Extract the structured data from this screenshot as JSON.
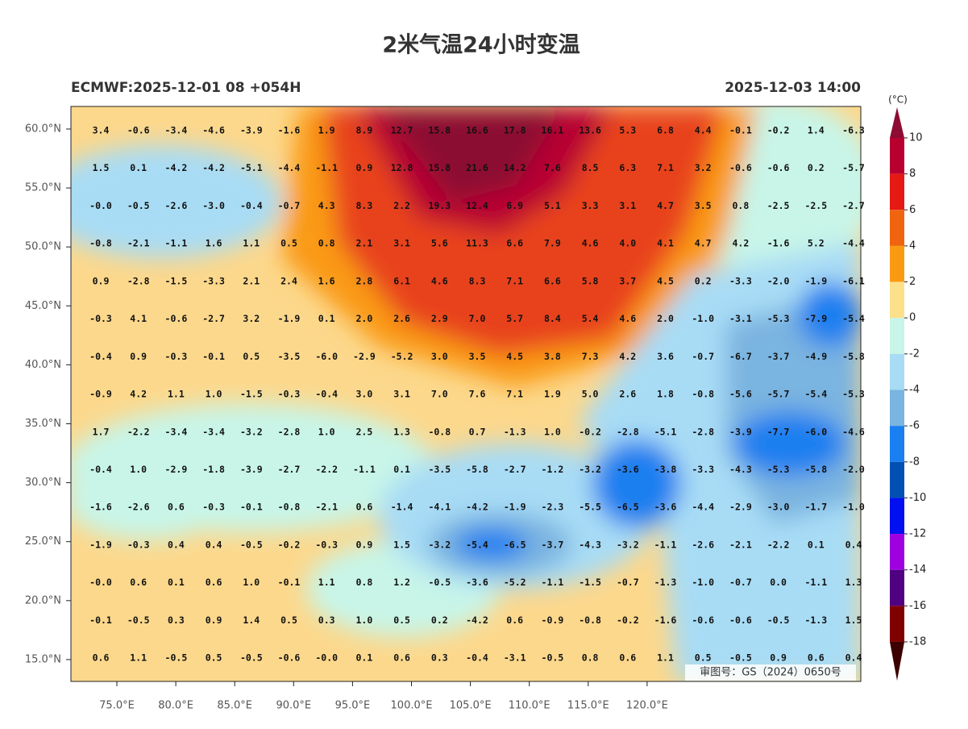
{
  "header": {
    "title": "2米气温24小时变温",
    "left": "ECMWF:2025-12-01 08 +054H",
    "right": "2025-12-03 14:00"
  },
  "map": {
    "lat_ticks": [
      {
        "value": 60,
        "label": "60.0°N"
      },
      {
        "value": 55,
        "label": "55.0°N"
      },
      {
        "value": 50,
        "label": "50.0°N"
      },
      {
        "value": 45,
        "label": "45.0°N"
      },
      {
        "value": 40,
        "label": "40.0°N"
      },
      {
        "value": 35,
        "label": "35.0°N"
      },
      {
        "value": 30,
        "label": "30.0°N"
      },
      {
        "value": 25,
        "label": "25.0°N"
      },
      {
        "value": 20,
        "label": "20.0°N"
      },
      {
        "value": 15,
        "label": "15.0°N"
      }
    ],
    "lon_ticks": [
      {
        "value": 75,
        "label": "75.0°E"
      },
      {
        "value": 80,
        "label": "80.0°E"
      },
      {
        "value": 85,
        "label": "85.0°E"
      },
      {
        "value": 90,
        "label": "90.0°E"
      },
      {
        "value": 95,
        "label": "95.0°E"
      },
      {
        "value": 100,
        "label": "100.0°E"
      },
      {
        "value": 105,
        "label": "105.0°E"
      },
      {
        "value": 110,
        "label": "110.0°E"
      },
      {
        "value": 115,
        "label": "115.0°E"
      },
      {
        "value": 120,
        "label": "120.0°E"
      }
    ],
    "grid": [
      [
        "3.4",
        "-0.6",
        "-3.4",
        "-4.6",
        "-3.9",
        "-1.6",
        "1.9",
        "8.9",
        "12.7",
        "15.8",
        "16.6",
        "17.8",
        "16.1",
        "13.6",
        "5.3",
        "6.8",
        "4.4",
        "-0.1",
        "-0.2",
        "1.4",
        "-6.3"
      ],
      [
        "1.5",
        "0.1",
        "-4.2",
        "-4.2",
        "-5.1",
        "-4.4",
        "-1.1",
        "0.9",
        "12.8",
        "15.8",
        "21.6",
        "14.2",
        "7.6",
        "8.5",
        "6.3",
        "7.1",
        "3.2",
        "-0.6",
        "-0.6",
        "0.2",
        "-5.7"
      ],
      [
        "-0.0",
        "-0.5",
        "-2.6",
        "-3.0",
        "-0.4",
        "-0.7",
        "4.3",
        "8.3",
        "2.2",
        "19.3",
        "12.4",
        "6.9",
        "5.1",
        "3.3",
        "3.1",
        "4.7",
        "3.5",
        "0.8",
        "-2.5",
        "-2.5",
        "-2.7"
      ],
      [
        "-0.8",
        "-2.1",
        "-1.1",
        "1.6",
        "1.1",
        "0.5",
        "0.8",
        "2.1",
        "3.1",
        "5.6",
        "11.3",
        "6.6",
        "7.9",
        "4.6",
        "4.0",
        "4.1",
        "4.7",
        "4.2",
        "-1.6",
        "5.2",
        "-4.4"
      ],
      [
        "0.9",
        "-2.8",
        "-1.5",
        "-3.3",
        "2.1",
        "2.4",
        "1.6",
        "2.8",
        "6.1",
        "4.6",
        "8.3",
        "7.1",
        "6.6",
        "5.8",
        "3.7",
        "4.5",
        "0.2",
        "-3.3",
        "-2.0",
        "-1.9",
        "-6.1"
      ],
      [
        "-0.3",
        "4.1",
        "-0.6",
        "-2.7",
        "3.2",
        "-1.9",
        "0.1",
        "2.0",
        "2.6",
        "2.9",
        "7.0",
        "5.7",
        "8.4",
        "5.4",
        "4.6",
        "2.0",
        "-1.0",
        "-3.1",
        "-5.3",
        "-7.9",
        "-5.4"
      ],
      [
        "-0.4",
        "0.9",
        "-0.3",
        "-0.1",
        "0.5",
        "-3.5",
        "-6.0",
        "-2.9",
        "-5.2",
        "3.0",
        "3.5",
        "4.5",
        "3.8",
        "7.3",
        "4.2",
        "3.6",
        "-0.7",
        "-6.7",
        "-3.7",
        "-4.9",
        "-5.8"
      ],
      [
        "-0.9",
        "4.2",
        "1.1",
        "1.0",
        "-1.5",
        "-0.3",
        "-0.4",
        "3.0",
        "3.1",
        "7.0",
        "7.6",
        "7.1",
        "1.9",
        "5.0",
        "2.6",
        "1.8",
        "-0.8",
        "-5.6",
        "-5.7",
        "-5.4",
        "-5.3"
      ],
      [
        "1.7",
        "-2.2",
        "-3.4",
        "-3.4",
        "-3.2",
        "-2.8",
        "1.0",
        "2.5",
        "1.3",
        "-0.8",
        "0.7",
        "-1.3",
        "1.0",
        "-0.2",
        "-2.8",
        "-5.1",
        "-2.8",
        "-3.9",
        "-7.7",
        "-6.0",
        "-4.6"
      ],
      [
        "-0.4",
        "1.0",
        "-2.9",
        "-1.8",
        "-3.9",
        "-2.7",
        "-2.2",
        "-1.1",
        "0.1",
        "-3.5",
        "-5.8",
        "-2.7",
        "-1.2",
        "-3.2",
        "-3.6",
        "-3.8",
        "-3.3",
        "-4.3",
        "-5.3",
        "-5.8",
        "-2.0"
      ],
      [
        "-1.6",
        "-2.6",
        "0.6",
        "-0.3",
        "-0.1",
        "-0.8",
        "-2.1",
        "0.6",
        "-1.4",
        "-4.1",
        "-4.2",
        "-1.9",
        "-2.3",
        "-5.5",
        "-6.5",
        "-3.6",
        "-4.4",
        "-2.9",
        "-3.0",
        "-1.7",
        "-1.0"
      ],
      [
        "-1.9",
        "-0.3",
        "0.4",
        "0.4",
        "-0.5",
        "-0.2",
        "-0.3",
        "0.9",
        "1.5",
        "-3.2",
        "-5.4",
        "-6.5",
        "-3.7",
        "-4.3",
        "-3.2",
        "-1.1",
        "-2.6",
        "-2.1",
        "-2.2",
        "0.1",
        "0.4"
      ],
      [
        "-0.0",
        "0.6",
        "0.1",
        "0.6",
        "1.0",
        "-0.1",
        "1.1",
        "0.8",
        "1.2",
        "-0.5",
        "-3.6",
        "-5.2",
        "-1.1",
        "-1.5",
        "-0.7",
        "-1.3",
        "-1.0",
        "-0.7",
        "0.0",
        "-1.1",
        "1.3"
      ],
      [
        "-0.1",
        "-0.5",
        "0.3",
        "0.9",
        "1.4",
        "0.5",
        "0.3",
        "1.0",
        "0.5",
        "0.2",
        "-4.2",
        "0.6",
        "-0.9",
        "-0.8",
        "-0.2",
        "-1.6",
        "-0.6",
        "-0.6",
        "-0.5",
        "-1.3",
        "1.5"
      ],
      [
        "0.6",
        "1.1",
        "-0.5",
        "0.5",
        "-0.5",
        "-0.6",
        "-0.0",
        "0.1",
        "0.6",
        "0.3",
        "-0.4",
        "-3.1",
        "-0.5",
        "0.8",
        "0.6",
        "1.1",
        "0.5",
        "-0.5",
        "0.9",
        "0.6",
        "0.4"
      ]
    ],
    "approval": "审图号：GS（2024）0650号"
  },
  "colorbar": {
    "unit": "(°C)",
    "ticks": [
      10,
      8,
      6,
      4,
      2,
      0,
      -2,
      -4,
      -6,
      -8,
      -10,
      -12,
      -14,
      -16,
      -18
    ],
    "colors": [
      "#8c0c33",
      "#b80030",
      "#e51a14",
      "#f0640f",
      "#fa9a12",
      "#fde08a",
      "#c8f5e8",
      "#a8dcf5",
      "#7ab4e0",
      "#1a7ff0",
      "#0050b4",
      "#0010f0",
      "#a000e0",
      "#500080",
      "#800000",
      "#3c0000"
    ]
  }
}
